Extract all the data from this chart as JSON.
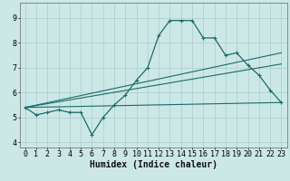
{
  "xlabel": "Humidex (Indice chaleur)",
  "bg_color": "#cce8e6",
  "grid_color": "#aaccca",
  "line_color": "#1a6b6b",
  "xlim": [
    -0.5,
    23.5
  ],
  "ylim": [
    3.8,
    9.6
  ],
  "yticks": [
    4,
    5,
    6,
    7,
    8,
    9
  ],
  "xticks": [
    0,
    1,
    2,
    3,
    4,
    5,
    6,
    7,
    8,
    9,
    10,
    11,
    12,
    13,
    14,
    15,
    16,
    17,
    18,
    19,
    20,
    21,
    22,
    23
  ],
  "curve1_x": [
    0,
    1,
    2,
    3,
    4,
    5,
    6,
    7,
    8,
    9,
    10,
    11,
    12,
    13,
    14,
    15,
    16,
    17,
    18,
    19,
    20,
    21,
    22,
    23
  ],
  "curve1_y": [
    5.4,
    5.1,
    5.2,
    5.3,
    5.2,
    5.2,
    4.3,
    5.0,
    5.5,
    5.9,
    6.5,
    7.0,
    8.3,
    8.9,
    8.9,
    8.9,
    8.2,
    8.2,
    7.5,
    7.6,
    7.1,
    6.7,
    6.1,
    5.6
  ],
  "line1_x": [
    0,
    23
  ],
  "line1_y": [
    5.4,
    5.6
  ],
  "line2_x": [
    0,
    23
  ],
  "line2_y": [
    5.4,
    7.15
  ],
  "line3_x": [
    0,
    23
  ],
  "line3_y": [
    5.4,
    7.6
  ],
  "font_size_xlabel": 7,
  "font_size_ticks": 6
}
